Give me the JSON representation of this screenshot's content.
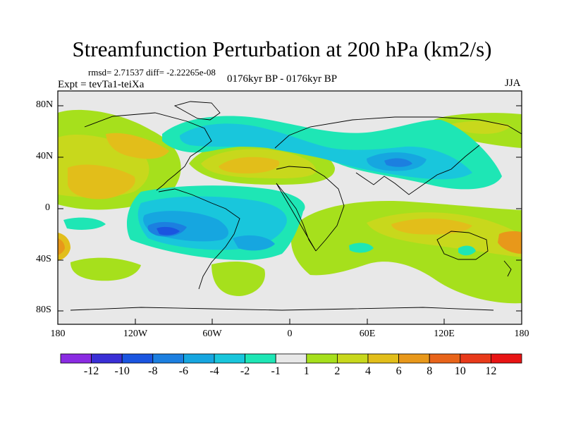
{
  "title": "Streamfunction Perturbation at 200 hPa (km2/s)",
  "stats": "rmsd= 2.71537 diff= -2.22265e-08",
  "experiment": "Expt = tevTa1-teiXa",
  "period": "0176kyr BP - 0176kyr BP",
  "season": "JJA",
  "lat_labels": [
    "80N",
    "40N",
    "0",
    "40S",
    "80S"
  ],
  "lon_labels": [
    "180",
    "120W",
    "60W",
    "0",
    "60E",
    "120E",
    "180"
  ],
  "colorbar": {
    "labels": [
      "-12",
      "-10",
      "-8",
      "-6",
      "-4",
      "-2",
      "-1",
      "1",
      "2",
      "4",
      "6",
      "8",
      "10",
      "12"
    ],
    "colors": [
      "#8a2be2",
      "#3a2fd6",
      "#1a55e0",
      "#1c7fe0",
      "#16a6e0",
      "#19c6dc",
      "#1ee6b5",
      "#e8e8e8",
      "#a6e01c",
      "#c8d81c",
      "#e2be1a",
      "#e8981a",
      "#e8641a",
      "#e83a1a",
      "#e81414"
    ]
  }
}
